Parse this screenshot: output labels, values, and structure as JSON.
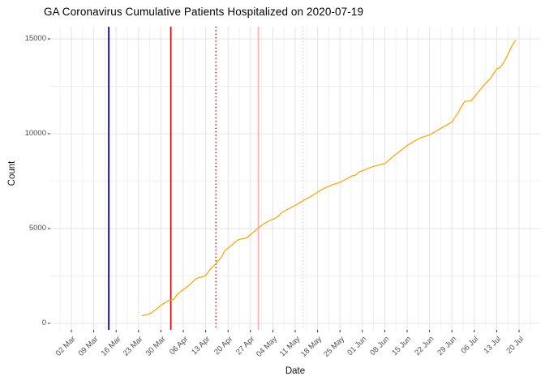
{
  "chart_data": {
    "type": "line",
    "title": "GA Coronavirus Cumulative Patients Hospitalized on 2020-07-19",
    "xlabel": "Date",
    "ylabel": "Count",
    "x_unit": "days_since_02_Mar_2020",
    "xlim_days": [
      -6.6,
      146.6
    ],
    "ylim": [
      0,
      15000
    ],
    "grid": "major_and_minor",
    "legend": "none",
    "x_ticks": [
      {
        "d": 0,
        "label": "02 Mar"
      },
      {
        "d": 7,
        "label": "09 Mar"
      },
      {
        "d": 14,
        "label": "16 Mar"
      },
      {
        "d": 21,
        "label": "23 Mar"
      },
      {
        "d": 28,
        "label": "30 Mar"
      },
      {
        "d": 35,
        "label": "06 Apr"
      },
      {
        "d": 42,
        "label": "13 Apr"
      },
      {
        "d": 49,
        "label": "20 Apr"
      },
      {
        "d": 56,
        "label": "27 Apr"
      },
      {
        "d": 63,
        "label": "04 May"
      },
      {
        "d": 70,
        "label": "11 May"
      },
      {
        "d": 77,
        "label": "18 May"
      },
      {
        "d": 84,
        "label": "25 May"
      },
      {
        "d": 91,
        "label": "01 Jun"
      },
      {
        "d": 98,
        "label": "08 Jun"
      },
      {
        "d": 105,
        "label": "15 Jun"
      },
      {
        "d": 112,
        "label": "22 Jun"
      },
      {
        "d": 119,
        "label": "29 Jun"
      },
      {
        "d": 126,
        "label": "06 Jul"
      },
      {
        "d": 133,
        "label": "13 Jul"
      },
      {
        "d": 140,
        "label": "20 Jul"
      }
    ],
    "y_ticks": [
      {
        "v": 0,
        "label": "0"
      },
      {
        "v": 5000,
        "label": "5000"
      },
      {
        "v": 10000,
        "label": "10000"
      },
      {
        "v": 15000,
        "label": "15000"
      }
    ],
    "y_minor": [
      2500,
      7500,
      12500
    ],
    "vlines": [
      {
        "d": 11.7,
        "color": "#0000E8",
        "style": "solid",
        "width": 1.8
      },
      {
        "d": 31.1,
        "color": "#DE0000",
        "style": "solid",
        "width": 1.7
      },
      {
        "d": 45.2,
        "color": "#D40000",
        "style": "dotted",
        "width": 1.5
      },
      {
        "d": 58.5,
        "color": "#FFB3BC",
        "style": "solid",
        "width": 2.0
      },
      {
        "d": 72.4,
        "color": "#FFBFC8",
        "style": "dotted",
        "width": 1.5
      }
    ],
    "series": [
      {
        "name": "cumulative-patients-hospitalized",
        "color": "#FFA500",
        "width": 1.25,
        "points": [
          [
            22,
            394
          ],
          [
            23,
            440
          ],
          [
            24,
            473
          ],
          [
            25,
            560
          ],
          [
            26,
            666
          ],
          [
            27,
            800
          ],
          [
            28,
            952
          ],
          [
            29,
            1060
          ],
          [
            30,
            1158
          ],
          [
            31,
            1220
          ],
          [
            32,
            1255
          ],
          [
            33,
            1500
          ],
          [
            34,
            1660
          ],
          [
            35,
            1774
          ],
          [
            36,
            1900
          ],
          [
            37,
            2040
          ],
          [
            38,
            2200
          ],
          [
            39,
            2351
          ],
          [
            40,
            2420
          ],
          [
            41,
            2455
          ],
          [
            42,
            2520
          ],
          [
            43,
            2750
          ],
          [
            44,
            2950
          ],
          [
            45,
            3108
          ],
          [
            46,
            3320
          ],
          [
            47,
            3500
          ],
          [
            48,
            3850
          ],
          [
            49,
            3960
          ],
          [
            50,
            4100
          ],
          [
            51,
            4250
          ],
          [
            52,
            4390
          ],
          [
            53,
            4450
          ],
          [
            54,
            4470
          ],
          [
            55,
            4530
          ],
          [
            56,
            4680
          ],
          [
            57,
            4810
          ],
          [
            58,
            4960
          ],
          [
            59,
            5090
          ],
          [
            60,
            5230
          ],
          [
            61,
            5330
          ],
          [
            62,
            5420
          ],
          [
            63,
            5490
          ],
          [
            64,
            5560
          ],
          [
            65,
            5700
          ],
          [
            66,
            5870
          ],
          [
            67,
            5950
          ],
          [
            68,
            6050
          ],
          [
            69,
            6130
          ],
          [
            70,
            6220
          ],
          [
            71,
            6320
          ],
          [
            72,
            6420
          ],
          [
            73,
            6520
          ],
          [
            74,
            6610
          ],
          [
            75,
            6700
          ],
          [
            76,
            6810
          ],
          [
            77,
            6920
          ],
          [
            78,
            7020
          ],
          [
            79,
            7110
          ],
          [
            80,
            7190
          ],
          [
            81,
            7260
          ],
          [
            82,
            7330
          ],
          [
            83,
            7380
          ],
          [
            84,
            7430
          ],
          [
            85,
            7520
          ],
          [
            86,
            7610
          ],
          [
            87,
            7700
          ],
          [
            88,
            7790
          ],
          [
            89,
            7820
          ],
          [
            90,
            7990
          ],
          [
            91,
            8040
          ],
          [
            92,
            8120
          ],
          [
            93,
            8190
          ],
          [
            94,
            8250
          ],
          [
            95,
            8300
          ],
          [
            96,
            8340
          ],
          [
            97,
            8380
          ],
          [
            98,
            8420
          ],
          [
            99,
            8560
          ],
          [
            100,
            8700
          ],
          [
            101,
            8850
          ],
          [
            102,
            8980
          ],
          [
            103,
            9110
          ],
          [
            104,
            9240
          ],
          [
            105,
            9370
          ],
          [
            106,
            9480
          ],
          [
            107,
            9580
          ],
          [
            108,
            9670
          ],
          [
            109,
            9760
          ],
          [
            110,
            9830
          ],
          [
            111,
            9880
          ],
          [
            112,
            9930
          ],
          [
            113,
            10030
          ],
          [
            114,
            10130
          ],
          [
            115,
            10230
          ],
          [
            116,
            10330
          ],
          [
            117,
            10420
          ],
          [
            118,
            10520
          ],
          [
            119,
            10610
          ],
          [
            120,
            10870
          ],
          [
            121,
            11120
          ],
          [
            122,
            11440
          ],
          [
            123,
            11700
          ],
          [
            124,
            11720
          ],
          [
            125,
            11740
          ],
          [
            126,
            11930
          ],
          [
            127,
            12140
          ],
          [
            128,
            12350
          ],
          [
            129,
            12550
          ],
          [
            130,
            12730
          ],
          [
            131,
            12900
          ],
          [
            132,
            13160
          ],
          [
            133,
            13420
          ],
          [
            134,
            13480
          ],
          [
            135,
            13700
          ],
          [
            136,
            14000
          ],
          [
            137,
            14350
          ],
          [
            138,
            14700
          ],
          [
            139,
            14930
          ]
        ]
      }
    ],
    "colors": {
      "grid_major": "#e4e4e4",
      "grid_minor": "#f2f2f2",
      "tick_mark": "#333333",
      "tick_text": "#4d4d4d",
      "axis_title": "#111111",
      "title_text": "#000000"
    }
  }
}
